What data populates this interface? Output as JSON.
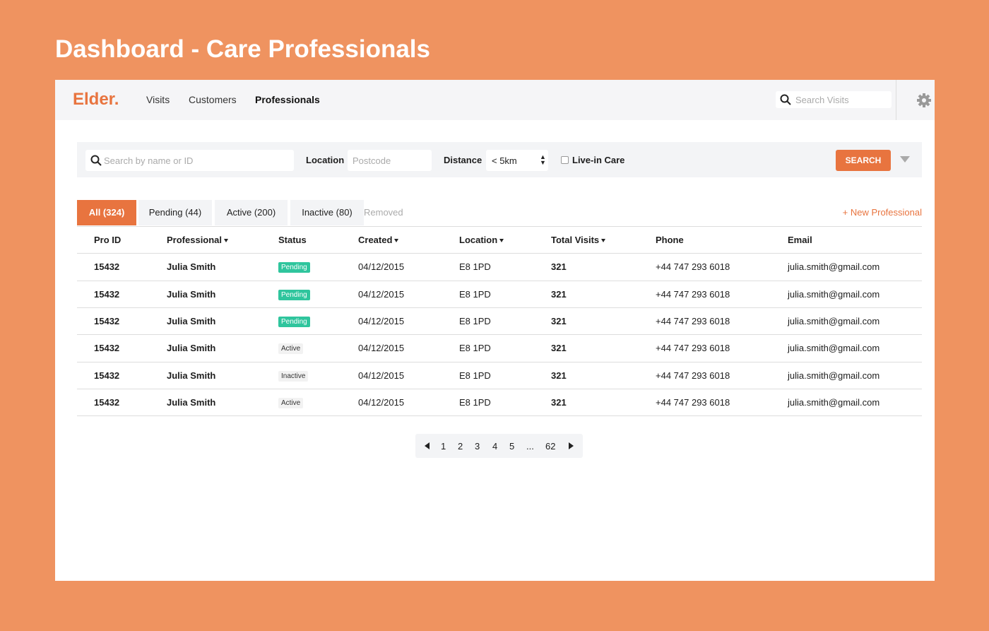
{
  "page_title": "Dashboard - Care Professionals",
  "nav": {
    "logo": "Elder.",
    "links": [
      "Visits",
      "Customers",
      "Professionals"
    ],
    "active_link": 2,
    "search_placeholder": "Search Visits"
  },
  "filters": {
    "search_placeholder": "Search by name or ID",
    "location_label": "Location",
    "location_placeholder": "Postcode",
    "distance_label": "Distance",
    "distance_value": "< 5km",
    "live_in_label": "Live-in Care",
    "search_button": "SEARCH"
  },
  "tabs": [
    "All (324)",
    "Pending (44)",
    "Active (200)",
    "Inactive (80)",
    "Removed"
  ],
  "active_tab": 0,
  "new_button": "+ New Professional",
  "table": {
    "columns": [
      {
        "label": "Pro ID",
        "sortable": false
      },
      {
        "label": "Professional",
        "sortable": true
      },
      {
        "label": "Status",
        "sortable": false
      },
      {
        "label": "Created",
        "sortable": true
      },
      {
        "label": "Location",
        "sortable": true
      },
      {
        "label": "Total Visits",
        "sortable": true
      },
      {
        "label": "Phone",
        "sortable": false
      },
      {
        "label": "Email",
        "sortable": false
      }
    ],
    "rows": [
      {
        "cells": [
          15432,
          "Julia Smith",
          "Pending",
          "04/12/2015",
          "E8 1PD",
          321,
          "+44 747 293 6018",
          "julia.smith@gmail.com"
        ],
        "status_color": "#2fc59d"
      },
      {
        "cells": [
          15432,
          "Julia Smith",
          "Pending",
          "04/12/2015",
          "E8 1PD",
          321,
          "+44 747 293 6018",
          "julia.smith@gmail.com"
        ],
        "status_color": "#2fc59d"
      },
      {
        "cells": [
          15432,
          "Julia Smith",
          "Pending",
          "04/12/2015",
          "E8 1PD",
          321,
          "+44 747 293 6018",
          "julia.smith@gmail.com"
        ],
        "status_color": "#2fc59d"
      },
      {
        "cells": [
          15432,
          "Julia Smith",
          "Active",
          "04/12/2015",
          "E8 1PD",
          321,
          "+44 747 293 6018",
          "julia.smith@gmail.com"
        ],
        "status_color": "#f2f2f2"
      },
      {
        "cells": [
          15432,
          "Julia Smith",
          "Inactive",
          "04/12/2015",
          "E8 1PD",
          321,
          "+44 747 293 6018",
          "julia.smith@gmail.com"
        ],
        "status_color": "#f2f2f2"
      },
      {
        "cells": [
          15432,
          "Julia Smith",
          "Active",
          "04/12/2015",
          "E8 1PD",
          321,
          "+44 747 293 6018",
          "julia.smith@gmail.com"
        ],
        "status_color": "#f2f2f2"
      }
    ]
  },
  "pagination": [
    "1",
    "2",
    "3",
    "4",
    "5",
    "...",
    "62"
  ]
}
